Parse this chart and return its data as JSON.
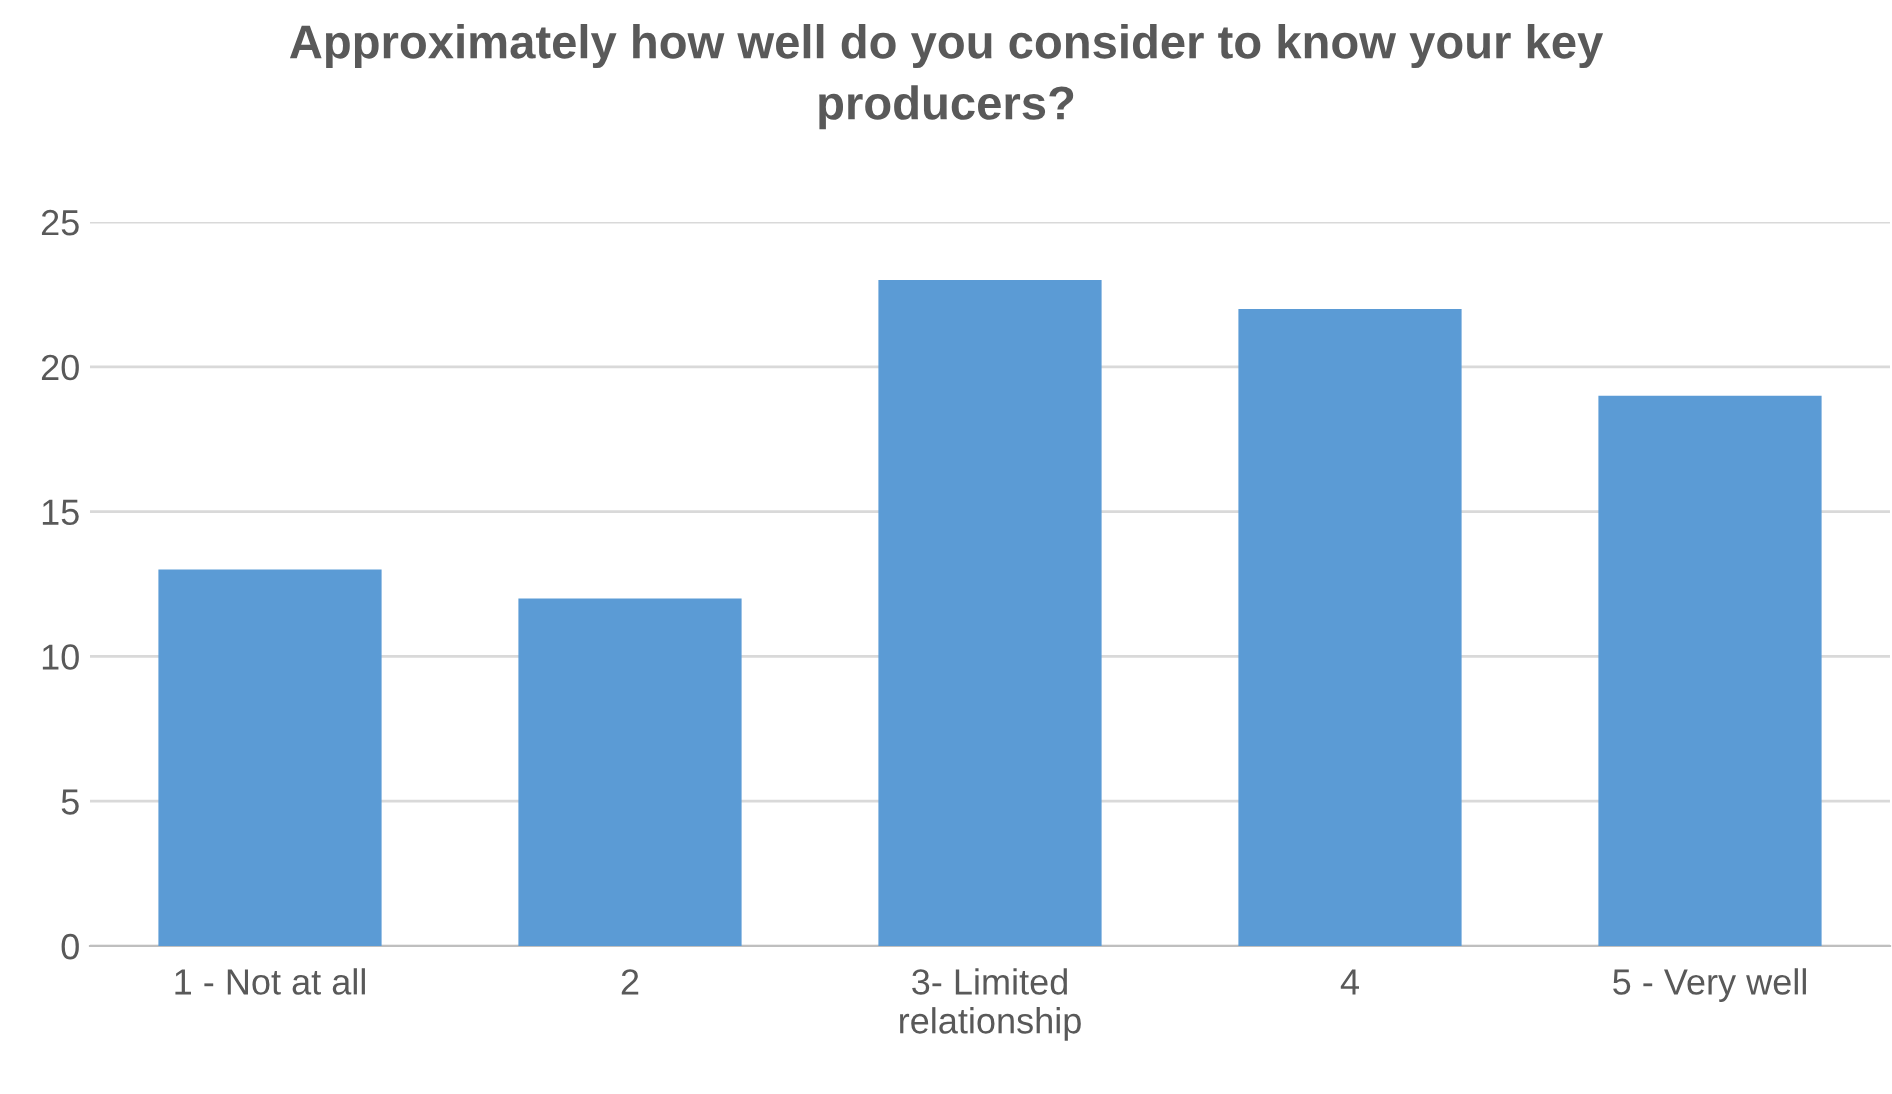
{
  "chart_data": {
    "type": "bar",
    "title": "Approximately how well do you consider to know your key producers?",
    "categories": [
      "1 - Not at all",
      "2",
      "3- Limited relationship",
      "4",
      "5 - Very well"
    ],
    "values": [
      13,
      12,
      23,
      22,
      19
    ],
    "color": "#5b9bd5",
    "ylim": [
      0,
      25
    ],
    "yticks": [
      0,
      5,
      10,
      15,
      20,
      25
    ],
    "grid": "y"
  }
}
